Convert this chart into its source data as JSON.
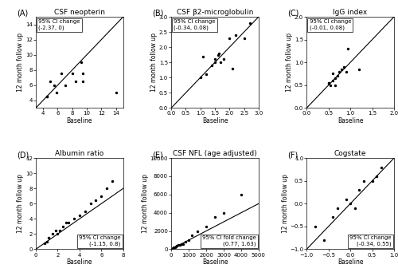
{
  "panels": [
    {
      "label": "(A)",
      "title": "CSF neopterin",
      "ci_text": "95% CI change\n(-2.37, 0)",
      "xlabel": "Baseline",
      "ylabel": "12 month follow up",
      "xlim": [
        3,
        15
      ],
      "ylim": [
        3,
        15
      ],
      "xticks": [
        4,
        6,
        8,
        10,
        12,
        14
      ],
      "yticks": [
        4,
        6,
        8,
        10,
        12,
        14
      ],
      "x": [
        4.5,
        4.5,
        5.0,
        5.5,
        5.8,
        6.5,
        7.0,
        8.0,
        8.5,
        9.2,
        9.5,
        9.5,
        14.0
      ],
      "y": [
        4.5,
        4.5,
        6.5,
        6.0,
        5.0,
        7.5,
        6.0,
        7.5,
        6.5,
        9.0,
        7.5,
        6.5,
        5.0
      ],
      "ci_loc": "upper left"
    },
    {
      "label": "(B)",
      "title": "CSF β2-microglobulin",
      "ci_text": "95% CI change\n(-0.34, 0.08)",
      "xlabel": "Baseline",
      "ylabel": "12 month follow up",
      "xlim": [
        0.0,
        3.0
      ],
      "ylim": [
        0.0,
        3.0
      ],
      "xticks": [
        0.0,
        0.5,
        1.0,
        1.5,
        2.0,
        2.5,
        3.0
      ],
      "yticks": [
        0.0,
        0.5,
        1.0,
        1.5,
        2.0,
        2.5,
        3.0
      ],
      "x": [
        1.0,
        1.1,
        1.2,
        1.4,
        1.5,
        1.5,
        1.6,
        1.65,
        1.7,
        1.8,
        2.0,
        2.1,
        2.2,
        2.5,
        2.7
      ],
      "y": [
        1.0,
        1.7,
        1.1,
        1.4,
        1.5,
        1.6,
        1.75,
        1.8,
        1.5,
        1.6,
        2.3,
        1.3,
        2.4,
        2.3,
        2.8
      ],
      "ci_loc": "upper left"
    },
    {
      "label": "(C)",
      "title": "IgG index",
      "ci_text": "95% CI change\n(-0.01, 0.08)",
      "xlabel": "Baseline",
      "ylabel": "12 month follow up",
      "xlim": [
        0.0,
        2.0
      ],
      "ylim": [
        0.0,
        2.0
      ],
      "xticks": [
        0.0,
        0.5,
        1.0,
        1.5,
        2.0
      ],
      "yticks": [
        0.0,
        0.5,
        1.0,
        1.5,
        2.0
      ],
      "x": [
        0.5,
        0.5,
        0.55,
        0.6,
        0.6,
        0.65,
        0.65,
        0.7,
        0.75,
        0.8,
        0.85,
        0.9,
        0.95,
        1.2
      ],
      "y": [
        0.55,
        0.55,
        0.5,
        0.6,
        0.75,
        0.5,
        0.65,
        0.7,
        0.8,
        0.85,
        0.9,
        0.8,
        1.3,
        0.85
      ],
      "ci_loc": "upper left"
    },
    {
      "label": "(D)",
      "title": "Albumin ratio",
      "ci_text": "95% CI change\n(-1.15, 0.8)",
      "xlabel": "Baseline",
      "ylabel": "12 month follow up",
      "xlim": [
        0,
        8
      ],
      "ylim": [
        0,
        12
      ],
      "xticks": [
        0,
        2,
        4,
        6,
        8
      ],
      "yticks": [
        0,
        2,
        4,
        6,
        8,
        10,
        12
      ],
      "x": [
        0.8,
        1.0,
        1.2,
        1.5,
        1.8,
        2.0,
        2.2,
        2.5,
        2.8,
        3.0,
        3.5,
        4.0,
        4.5,
        5.0,
        5.5,
        6.0,
        6.5,
        7.0
      ],
      "y": [
        0.8,
        1.0,
        1.5,
        2.0,
        2.5,
        2.0,
        2.5,
        3.0,
        3.5,
        3.5,
        4.0,
        4.5,
        5.0,
        6.0,
        6.5,
        7.0,
        8.0,
        9.0
      ],
      "ci_loc": "lower right"
    },
    {
      "label": "(E)",
      "title": "CSF NFL (age adjusted)",
      "ci_text": "95% CI fold change\n(0.77, 1.63)",
      "xlabel": "Baseline",
      "ylabel": "12 month follow up",
      "xlim": [
        0,
        5000
      ],
      "ylim": [
        0,
        10000
      ],
      "xticks": [
        0,
        1000,
        2000,
        3000,
        4000,
        5000
      ],
      "yticks": [
        0,
        2000,
        4000,
        6000,
        8000,
        10000
      ],
      "x": [
        100,
        150,
        200,
        250,
        300,
        400,
        500,
        600,
        700,
        800,
        1000,
        1200,
        1500,
        2000,
        2500,
        3000,
        4000
      ],
      "y": [
        150,
        200,
        250,
        300,
        400,
        500,
        500,
        600,
        600,
        800,
        1000,
        1500,
        2000,
        2500,
        3500,
        4000,
        6000
      ],
      "ci_loc": "lower right"
    },
    {
      "label": "(F)",
      "title": "Cogstate",
      "ci_text": "95% CI change\n(-0.34, 0.55)",
      "xlabel": "Baseline",
      "ylabel": "12 month follow up",
      "xlim": [
        -1.0,
        1.0
      ],
      "ylim": [
        -1.0,
        1.0
      ],
      "xticks": [
        -1.0,
        -0.5,
        0.0,
        0.5,
        1.0
      ],
      "yticks": [
        -1.0,
        -0.5,
        0.0,
        0.5,
        1.0
      ],
      "x": [
        -0.8,
        -0.6,
        -0.4,
        -0.3,
        -0.1,
        0.0,
        0.1,
        0.2,
        0.3,
        0.5,
        0.6,
        0.7
      ],
      "y": [
        -0.5,
        -0.8,
        -0.3,
        -0.1,
        0.1,
        0.0,
        -0.1,
        0.3,
        0.5,
        0.5,
        0.6,
        0.8
      ],
      "ci_loc": "lower right"
    }
  ],
  "marker_size": 6,
  "marker_color": "black",
  "line_color": "black",
  "box_facecolor": "white",
  "box_edgecolor": "black",
  "title_font_size": 6.5,
  "label_font_size": 5.5,
  "tick_font_size": 5,
  "ci_font_size": 5,
  "panel_label_font_size": 7
}
